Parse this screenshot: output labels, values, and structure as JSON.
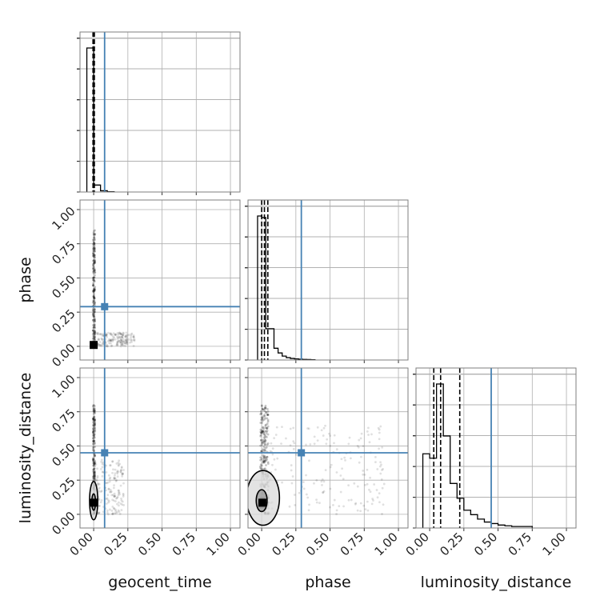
{
  "chart_data": {
    "type": "corner",
    "parameters": [
      "geocent_time",
      "phase",
      "luminosity_distance"
    ],
    "axis_labels": {
      "x": [
        "geocent_time",
        "phase",
        "luminosity_distance"
      ],
      "y": [
        "",
        "phase",
        "luminosity_distance"
      ]
    },
    "axis_range": [
      -0.1,
      1.07
    ],
    "tick_values": [
      0.0,
      0.25,
      0.5,
      0.75,
      1.0
    ],
    "tick_labels": [
      "0.00",
      "0.25",
      "0.50",
      "0.75",
      "1.00"
    ],
    "truths": {
      "geocent_time": 0.08,
      "phase": 0.29,
      "luminosity_distance": 0.45
    },
    "truth_color": "#4682b4",
    "grid": true,
    "histograms": [
      {
        "parameter": "geocent_time",
        "bin_edges": [
          -0.05,
          0.0,
          0.05,
          0.1,
          0.15
        ],
        "counts": [
          0.93,
          0.045,
          0.008,
          0.002
        ],
        "quantiles": [
          -0.005,
          0.0,
          0.005
        ]
      },
      {
        "parameter": "phase",
        "bin_edges": [
          -0.03,
          0.0,
          0.03,
          0.06,
          0.09,
          0.12,
          0.15,
          0.18,
          0.21,
          0.24,
          0.27,
          0.3,
          0.33,
          0.36,
          0.39
        ],
        "counts": [
          0.92,
          0.91,
          0.2,
          0.2,
          0.075,
          0.045,
          0.025,
          0.015,
          0.01,
          0.007,
          0.005,
          0.004,
          0.003,
          0.002
        ],
        "quantiles": [
          0.0,
          0.02,
          0.045
        ]
      },
      {
        "parameter": "luminosity_distance",
        "bin_edges": [
          -0.05,
          0.0,
          0.05,
          0.1,
          0.15,
          0.2,
          0.25,
          0.3,
          0.35,
          0.4,
          0.45,
          0.5,
          0.55,
          0.6,
          0.65,
          0.7,
          0.75
        ],
        "counts": [
          0.5,
          0.47,
          0.97,
          0.62,
          0.3,
          0.2,
          0.12,
          0.09,
          0.06,
          0.04,
          0.03,
          0.02,
          0.015,
          0.01,
          0.01,
          0.01
        ],
        "quantiles": [
          0.03,
          0.08,
          0.22
        ]
      }
    ],
    "scatter_panels": [
      {
        "x_param": "geocent_time",
        "y_param": "phase",
        "core": {
          "x": [
            -0.005,
            0.005
          ],
          "y": [
            0.0,
            0.02
          ]
        },
        "tail": {
          "x": [
            -0.005,
            0.01
          ],
          "y": [
            0.0,
            0.85
          ]
        },
        "spread": {
          "x": [
            0.0,
            0.3
          ],
          "y": [
            0.0,
            0.1
          ]
        },
        "contours": []
      },
      {
        "x_param": "geocent_time",
        "y_param": "luminosity_distance",
        "core": {
          "x": [
            -0.01,
            0.01
          ],
          "y": [
            0.05,
            0.12
          ]
        },
        "tail": {
          "x": [
            -0.005,
            0.01
          ],
          "y": [
            0.0,
            0.8
          ]
        },
        "spread": {
          "x": [
            0.0,
            0.22
          ],
          "y": [
            0.0,
            0.4
          ]
        },
        "contours": [
          {
            "cx": 0.0,
            "cy": 0.1,
            "rx": 0.03,
            "ry": 0.14,
            "level": "outer"
          },
          {
            "cx": 0.0,
            "cy": 0.09,
            "rx": 0.014,
            "ry": 0.06,
            "level": "inner"
          }
        ]
      },
      {
        "x_param": "phase",
        "y_param": "luminosity_distance",
        "core": {
          "x": [
            -0.01,
            0.02
          ],
          "y": [
            0.05,
            0.12
          ]
        },
        "tail": {
          "x": [
            -0.01,
            0.05
          ],
          "y": [
            0.0,
            0.8
          ]
        },
        "spread": {
          "x": [
            0.0,
            0.9
          ],
          "y": [
            0.0,
            0.65
          ]
        },
        "contours": [
          {
            "cx": 0.01,
            "cy": 0.12,
            "rx": 0.12,
            "ry": 0.2,
            "level": "outer"
          },
          {
            "cx": 0.0,
            "cy": 0.1,
            "rx": 0.04,
            "ry": 0.08,
            "level": "inner"
          }
        ]
      }
    ]
  }
}
